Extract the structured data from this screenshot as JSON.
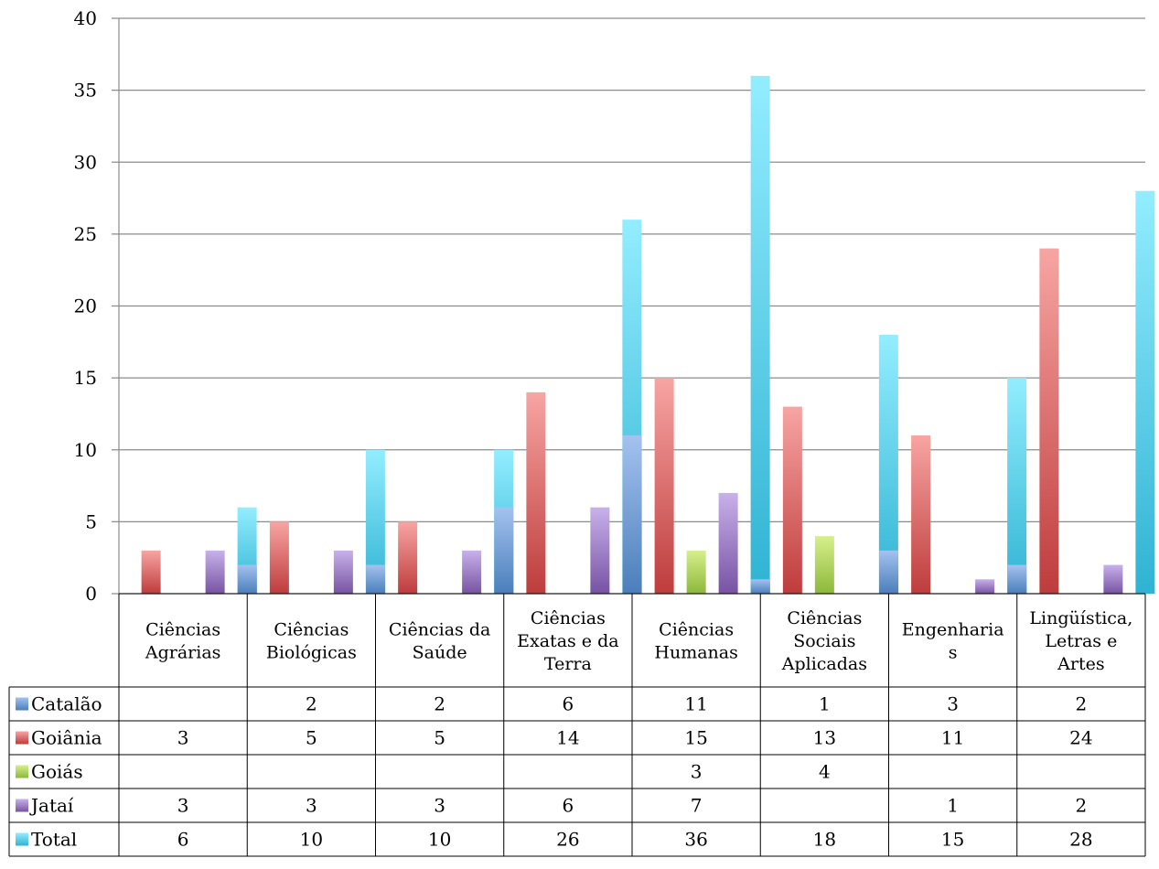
{
  "chart_data": {
    "type": "bar",
    "title": "",
    "xlabel": "",
    "ylabel": "",
    "ylim": [
      0,
      40
    ],
    "yticks": [
      "0",
      "5",
      "10",
      "15",
      "20",
      "25",
      "30",
      "35",
      "40"
    ],
    "grid": true,
    "legend": "data-table-left",
    "categories": [
      [
        "Ciências",
        "Agrárias"
      ],
      [
        "Ciências",
        "Biológicas"
      ],
      [
        "Ciências da",
        "Saúde"
      ],
      [
        "Ciências",
        "Exatas e da",
        "Terra"
      ],
      [
        "Ciências",
        "Humanas"
      ],
      [
        "Ciências",
        "Sociais",
        "Aplicadas"
      ],
      [
        "Engenharia",
        "s"
      ],
      [
        "Lingüística,",
        "Letras e",
        "Artes"
      ]
    ],
    "series": [
      {
        "name": "Catalão",
        "values": [
          null,
          2,
          2,
          6,
          11,
          1,
          3,
          2
        ],
        "color": "#4a7ebb",
        "light": "#a4c2ef"
      },
      {
        "name": "Goiânia",
        "values": [
          3,
          5,
          5,
          14,
          15,
          13,
          11,
          24
        ],
        "color": "#be3c3c",
        "light": "#f7a5a3"
      },
      {
        "name": "Goiás",
        "values": [
          null,
          null,
          null,
          null,
          3,
          4,
          null,
          null
        ],
        "color": "#8cb83a",
        "light": "#d6f08c"
      },
      {
        "name": "Jataí",
        "values": [
          3,
          3,
          3,
          6,
          7,
          null,
          1,
          2
        ],
        "color": "#7753a3",
        "light": "#c8b1ea"
      },
      {
        "name": "Total",
        "values": [
          6,
          10,
          10,
          26,
          36,
          18,
          15,
          28
        ],
        "color": "#2fb3d3",
        "light": "#93edff"
      }
    ]
  }
}
